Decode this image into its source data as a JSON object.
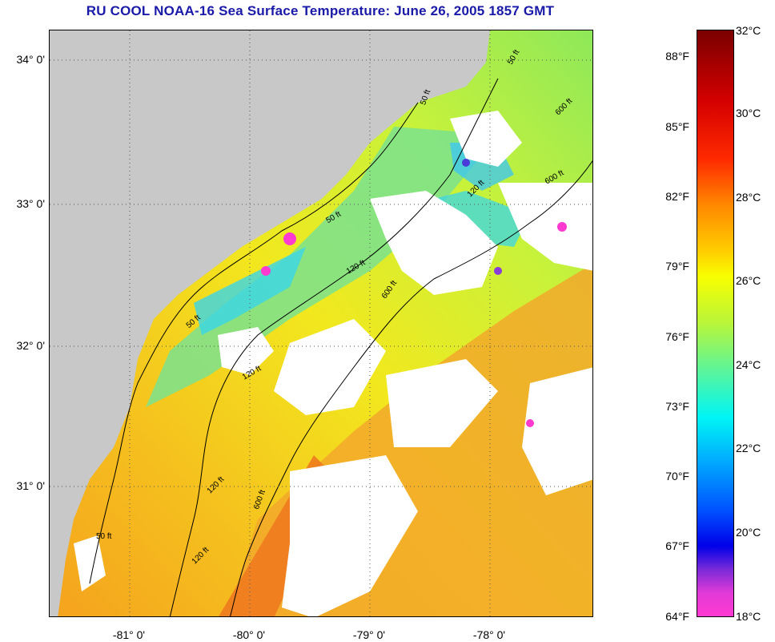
{
  "title": "RU COOL  NOAA-16  Sea Surface Temperature:  June 26, 2005 1857 GMT",
  "lat_labels": [
    "34° 0'",
    "33° 0'",
    "32° 0'",
    "31° 0'"
  ],
  "lon_labels": [
    "-81° 0'",
    "-80° 0'",
    "-79° 0'",
    "-78° 0'"
  ],
  "contour_labels": [
    "50 ft",
    "50 ft",
    "50 ft",
    "50 ft",
    "50 ft",
    "120 ft",
    "120 ft",
    "120 ft",
    "120 ft",
    "120 ft",
    "600 ft",
    "600 ft",
    "600 ft",
    "600 ft"
  ],
  "colorbar": {
    "fahrenheit": [
      "88°F",
      "85°F",
      "82°F",
      "79°F",
      "76°F",
      "73°F",
      "70°F",
      "67°F",
      "64°F"
    ],
    "celsius": [
      "32°C",
      "30°C",
      "28°C",
      "26°C",
      "24°C",
      "22°C",
      "20°C",
      "18°C"
    ]
  },
  "colors": {
    "title": "#1a1aa8",
    "land": "#c8c8c8",
    "cloud": "#ffffff",
    "warm": "#f5a623",
    "mid": "#e8f21e",
    "cool": "#7ae07a",
    "cold": "#2ad4f5"
  }
}
